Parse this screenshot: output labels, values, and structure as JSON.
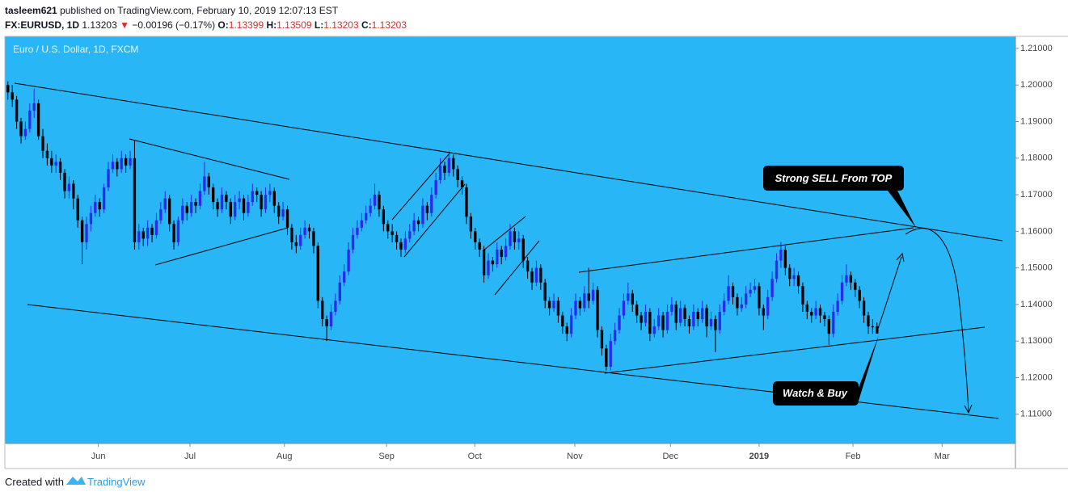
{
  "header": {
    "author": "tasleem621",
    "published": "published on TradingView.com, February 10, 2019 12:07:13 EST",
    "symbol": "FX:EURUSD, 1D",
    "last": "1.13203",
    "change_arrow": "▼",
    "change": "−0.00196 (−0.17%)",
    "ohlc": [
      {
        "label": "O:",
        "value": "1.13399"
      },
      {
        "label": "H:",
        "value": "1.13509"
      },
      {
        "label": "L:",
        "value": "1.13203"
      },
      {
        "label": "C:",
        "value": "1.13203"
      }
    ]
  },
  "footer": {
    "text": "Created with",
    "brand": "TradingView"
  },
  "chart_data": {
    "type": "candlestick",
    "title": "Euro / U.S. Dollar, 1D, FXCM",
    "annotations": [
      "Strong SELL From TOP",
      "Watch & Buy"
    ],
    "background": "#29b6f6",
    "up_color": "#2b2bf0",
    "down_color": "#000000",
    "ylim": [
      1.102,
      1.2133
    ],
    "yticks": [
      {
        "value": 1.11,
        "label": "1.11000"
      },
      {
        "value": 1.12,
        "label": "1.12000"
      },
      {
        "value": 1.13,
        "label": "1.13000"
      },
      {
        "value": 1.14,
        "label": "1.14000"
      },
      {
        "value": 1.15,
        "label": "1.15000"
      },
      {
        "value": 1.16,
        "label": "1.16000"
      },
      {
        "value": 1.17,
        "label": "1.17000"
      },
      {
        "value": 1.18,
        "label": "1.18000"
      },
      {
        "value": 1.19,
        "label": "1.19000"
      },
      {
        "value": 1.2,
        "label": "1.20000"
      },
      {
        "value": 1.21,
        "label": "1.21000"
      }
    ],
    "xlim": [
      -0.7,
      230.7
    ],
    "xticks": [
      {
        "value": 20.7,
        "label": "Jun"
      },
      {
        "value": 41.7,
        "label": "Jul"
      },
      {
        "value": 63.3,
        "label": "Aug"
      },
      {
        "value": 86.7,
        "label": "Sep"
      },
      {
        "value": 106.9,
        "label": "Oct"
      },
      {
        "value": 129.8,
        "label": "Nov"
      },
      {
        "value": 151.7,
        "label": "Dec"
      },
      {
        "value": 172,
        "label": "2019"
      },
      {
        "value": 193.5,
        "label": "Feb"
      },
      {
        "value": 213.9,
        "label": "Mar"
      }
    ],
    "values": [
      [
        1.2,
        1.201,
        1.196,
        1.198
      ],
      [
        1.198,
        1.2,
        1.194,
        1.196
      ],
      [
        1.196,
        1.197,
        1.188,
        1.19
      ],
      [
        1.19,
        1.191,
        1.184,
        1.186
      ],
      [
        1.186,
        1.19,
        1.185,
        1.188
      ],
      [
        1.188,
        1.195,
        1.187,
        1.193
      ],
      [
        1.193,
        1.199,
        1.191,
        1.195
      ],
      [
        1.195,
        1.196,
        1.185,
        1.186
      ],
      [
        1.186,
        1.188,
        1.18,
        1.182
      ],
      [
        1.182,
        1.184,
        1.178,
        1.18
      ],
      [
        1.18,
        1.182,
        1.176,
        1.178
      ],
      [
        1.178,
        1.181,
        1.176,
        1.179
      ],
      [
        1.179,
        1.18,
        1.174,
        1.176
      ],
      [
        1.176,
        1.177,
        1.169,
        1.171
      ],
      [
        1.171,
        1.175,
        1.169,
        1.173
      ],
      [
        1.173,
        1.174,
        1.166,
        1.169
      ],
      [
        1.169,
        1.17,
        1.161,
        1.163
      ],
      [
        1.163,
        1.164,
        1.151,
        1.157
      ],
      [
        1.157,
        1.164,
        1.155,
        1.162
      ],
      [
        1.162,
        1.167,
        1.16,
        1.165
      ],
      [
        1.165,
        1.17,
        1.164,
        1.168
      ],
      [
        1.168,
        1.169,
        1.164,
        1.166
      ],
      [
        1.166,
        1.173,
        1.165,
        1.172
      ],
      [
        1.172,
        1.179,
        1.171,
        1.177
      ],
      [
        1.177,
        1.181,
        1.176,
        1.179
      ],
      [
        1.179,
        1.18,
        1.175,
        1.177
      ],
      [
        1.177,
        1.182,
        1.176,
        1.18
      ],
      [
        1.18,
        1.181,
        1.176,
        1.178
      ],
      [
        1.178,
        1.182,
        1.177,
        1.18
      ],
      [
        1.18,
        1.185,
        1.155,
        1.157
      ],
      [
        1.157,
        1.162,
        1.155,
        1.16
      ],
      [
        1.16,
        1.161,
        1.156,
        1.158
      ],
      [
        1.158,
        1.163,
        1.156,
        1.161
      ],
      [
        1.161,
        1.162,
        1.157,
        1.159
      ],
      [
        1.159,
        1.165,
        1.158,
        1.163
      ],
      [
        1.163,
        1.168,
        1.162,
        1.166
      ],
      [
        1.166,
        1.171,
        1.165,
        1.169
      ],
      [
        1.169,
        1.17,
        1.16,
        1.162
      ],
      [
        1.162,
        1.163,
        1.155,
        1.157
      ],
      [
        1.157,
        1.164,
        1.156,
        1.163
      ],
      [
        1.163,
        1.169,
        1.162,
        1.167
      ],
      [
        1.167,
        1.168,
        1.163,
        1.165
      ],
      [
        1.165,
        1.17,
        1.164,
        1.168
      ],
      [
        1.168,
        1.169,
        1.165,
        1.167
      ],
      [
        1.167,
        1.173,
        1.166,
        1.171
      ],
      [
        1.171,
        1.179,
        1.17,
        1.175
      ],
      [
        1.175,
        1.176,
        1.17,
        1.172
      ],
      [
        1.172,
        1.173,
        1.166,
        1.168
      ],
      [
        1.168,
        1.169,
        1.164,
        1.166
      ],
      [
        1.166,
        1.172,
        1.165,
        1.17
      ],
      [
        1.17,
        1.171,
        1.166,
        1.168
      ],
      [
        1.168,
        1.169,
        1.162,
        1.164
      ],
      [
        1.164,
        1.17,
        1.163,
        1.168
      ],
      [
        1.168,
        1.171,
        1.166,
        1.169
      ],
      [
        1.169,
        1.17,
        1.163,
        1.165
      ],
      [
        1.165,
        1.17,
        1.164,
        1.168
      ],
      [
        1.168,
        1.173,
        1.167,
        1.171
      ],
      [
        1.171,
        1.172,
        1.168,
        1.17
      ],
      [
        1.17,
        1.171,
        1.164,
        1.166
      ],
      [
        1.166,
        1.172,
        1.165,
        1.17
      ],
      [
        1.17,
        1.173,
        1.168,
        1.171
      ],
      [
        1.171,
        1.172,
        1.165,
        1.167
      ],
      [
        1.167,
        1.168,
        1.162,
        1.164
      ],
      [
        1.164,
        1.168,
        1.163,
        1.166
      ],
      [
        1.166,
        1.167,
        1.159,
        1.161
      ],
      [
        1.161,
        1.162,
        1.155,
        1.157
      ],
      [
        1.157,
        1.159,
        1.154,
        1.156
      ],
      [
        1.156,
        1.161,
        1.155,
        1.159
      ],
      [
        1.159,
        1.163,
        1.158,
        1.161
      ],
      [
        1.161,
        1.162,
        1.158,
        1.16
      ],
      [
        1.16,
        1.161,
        1.154,
        1.156
      ],
      [
        1.156,
        1.157,
        1.139,
        1.141
      ],
      [
        1.141,
        1.142,
        1.134,
        1.136
      ],
      [
        1.136,
        1.137,
        1.13,
        1.134
      ],
      [
        1.134,
        1.14,
        1.133,
        1.138
      ],
      [
        1.138,
        1.143,
        1.137,
        1.141
      ],
      [
        1.141,
        1.148,
        1.14,
        1.146
      ],
      [
        1.146,
        1.151,
        1.145,
        1.149
      ],
      [
        1.149,
        1.157,
        1.148,
        1.155
      ],
      [
        1.155,
        1.161,
        1.154,
        1.159
      ],
      [
        1.159,
        1.163,
        1.158,
        1.161
      ],
      [
        1.161,
        1.165,
        1.16,
        1.163
      ],
      [
        1.163,
        1.167,
        1.162,
        1.165
      ],
      [
        1.165,
        1.169,
        1.164,
        1.167
      ],
      [
        1.167,
        1.173,
        1.166,
        1.17
      ],
      [
        1.17,
        1.171,
        1.164,
        1.166
      ],
      [
        1.166,
        1.167,
        1.16,
        1.162
      ],
      [
        1.162,
        1.163,
        1.158,
        1.16
      ],
      [
        1.16,
        1.162,
        1.157,
        1.159
      ],
      [
        1.159,
        1.16,
        1.155,
        1.157
      ],
      [
        1.157,
        1.158,
        1.153,
        1.155
      ],
      [
        1.155,
        1.16,
        1.154,
        1.158
      ],
      [
        1.158,
        1.162,
        1.157,
        1.16
      ],
      [
        1.16,
        1.165,
        1.159,
        1.163
      ],
      [
        1.163,
        1.164,
        1.16,
        1.162
      ],
      [
        1.162,
        1.169,
        1.161,
        1.167
      ],
      [
        1.167,
        1.168,
        1.163,
        1.165
      ],
      [
        1.165,
        1.172,
        1.164,
        1.17
      ],
      [
        1.17,
        1.176,
        1.169,
        1.174
      ],
      [
        1.174,
        1.18,
        1.173,
        1.178
      ],
      [
        1.178,
        1.179,
        1.174,
        1.176
      ],
      [
        1.176,
        1.182,
        1.175,
        1.18
      ],
      [
        1.18,
        1.181,
        1.175,
        1.177
      ],
      [
        1.177,
        1.178,
        1.172,
        1.174
      ],
      [
        1.174,
        1.175,
        1.17,
        1.172
      ],
      [
        1.172,
        1.173,
        1.162,
        1.164
      ],
      [
        1.164,
        1.165,
        1.158,
        1.16
      ],
      [
        1.16,
        1.161,
        1.155,
        1.157
      ],
      [
        1.157,
        1.158,
        1.153,
        1.155
      ],
      [
        1.155,
        1.156,
        1.146,
        1.148
      ],
      [
        1.148,
        1.154,
        1.147,
        1.152
      ],
      [
        1.152,
        1.153,
        1.149,
        1.151
      ],
      [
        1.151,
        1.157,
        1.15,
        1.155
      ],
      [
        1.155,
        1.156,
        1.151,
        1.153
      ],
      [
        1.153,
        1.158,
        1.152,
        1.156
      ],
      [
        1.156,
        1.162,
        1.155,
        1.16
      ],
      [
        1.16,
        1.161,
        1.155,
        1.157
      ],
      [
        1.157,
        1.16,
        1.155,
        1.158
      ],
      [
        1.158,
        1.159,
        1.15,
        1.152
      ],
      [
        1.152,
        1.153,
        1.147,
        1.149
      ],
      [
        1.149,
        1.15,
        1.144,
        1.146
      ],
      [
        1.146,
        1.152,
        1.145,
        1.15
      ],
      [
        1.15,
        1.151,
        1.144,
        1.146
      ],
      [
        1.146,
        1.147,
        1.139,
        1.141
      ],
      [
        1.141,
        1.142,
        1.137,
        1.139
      ],
      [
        1.139,
        1.143,
        1.138,
        1.141
      ],
      [
        1.141,
        1.142,
        1.135,
        1.137
      ],
      [
        1.137,
        1.138,
        1.132,
        1.134
      ],
      [
        1.134,
        1.135,
        1.13,
        1.132
      ],
      [
        1.132,
        1.139,
        1.131,
        1.137
      ],
      [
        1.137,
        1.143,
        1.136,
        1.141
      ],
      [
        1.141,
        1.142,
        1.137,
        1.139
      ],
      [
        1.139,
        1.145,
        1.138,
        1.143
      ],
      [
        1.143,
        1.15,
        1.139,
        1.141
      ],
      [
        1.141,
        1.146,
        1.14,
        1.144
      ],
      [
        1.144,
        1.145,
        1.131,
        1.133
      ],
      [
        1.133,
        1.134,
        1.126,
        1.128
      ],
      [
        1.128,
        1.129,
        1.122,
        1.123
      ],
      [
        1.123,
        1.132,
        1.122,
        1.13
      ],
      [
        1.13,
        1.135,
        1.129,
        1.133
      ],
      [
        1.133,
        1.139,
        1.132,
        1.137
      ],
      [
        1.137,
        1.143,
        1.136,
        1.141
      ],
      [
        1.141,
        1.146,
        1.14,
        1.143
      ],
      [
        1.143,
        1.144,
        1.138,
        1.14
      ],
      [
        1.14,
        1.141,
        1.135,
        1.137
      ],
      [
        1.137,
        1.138,
        1.133,
        1.135
      ],
      [
        1.135,
        1.14,
        1.134,
        1.138
      ],
      [
        1.138,
        1.139,
        1.13,
        1.132
      ],
      [
        1.132,
        1.136,
        1.131,
        1.134
      ],
      [
        1.134,
        1.139,
        1.133,
        1.137
      ],
      [
        1.137,
        1.138,
        1.131,
        1.133
      ],
      [
        1.133,
        1.14,
        1.132,
        1.138
      ],
      [
        1.138,
        1.142,
        1.137,
        1.14
      ],
      [
        1.14,
        1.141,
        1.133,
        1.135
      ],
      [
        1.135,
        1.141,
        1.134,
        1.139
      ],
      [
        1.139,
        1.14,
        1.134,
        1.136
      ],
      [
        1.136,
        1.137,
        1.132,
        1.134
      ],
      [
        1.134,
        1.14,
        1.133,
        1.138
      ],
      [
        1.138,
        1.139,
        1.134,
        1.136
      ],
      [
        1.136,
        1.141,
        1.135,
        1.139
      ],
      [
        1.139,
        1.14,
        1.131,
        1.134
      ],
      [
        1.134,
        1.138,
        1.133,
        1.136
      ],
      [
        1.136,
        1.137,
        1.127,
        1.133
      ],
      [
        1.133,
        1.14,
        1.132,
        1.138
      ],
      [
        1.138,
        1.143,
        1.137,
        1.141
      ],
      [
        1.141,
        1.148,
        1.14,
        1.145
      ],
      [
        1.145,
        1.146,
        1.14,
        1.142
      ],
      [
        1.142,
        1.143,
        1.137,
        1.139
      ],
      [
        1.139,
        1.142,
        1.138,
        1.14
      ],
      [
        1.14,
        1.145,
        1.139,
        1.143
      ],
      [
        1.143,
        1.146,
        1.142,
        1.144
      ],
      [
        1.144,
        1.147,
        1.143,
        1.145
      ],
      [
        1.145,
        1.146,
        1.137,
        1.139
      ],
      [
        1.139,
        1.14,
        1.133,
        1.137
      ],
      [
        1.137,
        1.144,
        1.136,
        1.142
      ],
      [
        1.142,
        1.149,
        1.141,
        1.147
      ],
      [
        1.147,
        1.154,
        1.146,
        1.152
      ],
      [
        1.152,
        1.157,
        1.15,
        1.155
      ],
      [
        1.155,
        1.156,
        1.148,
        1.15
      ],
      [
        1.15,
        1.151,
        1.145,
        1.147
      ],
      [
        1.147,
        1.15,
        1.145,
        1.148
      ],
      [
        1.148,
        1.149,
        1.143,
        1.145
      ],
      [
        1.145,
        1.146,
        1.138,
        1.14
      ],
      [
        1.14,
        1.141,
        1.136,
        1.138
      ],
      [
        1.138,
        1.139,
        1.135,
        1.137
      ],
      [
        1.137,
        1.141,
        1.136,
        1.139
      ],
      [
        1.139,
        1.14,
        1.135,
        1.137
      ],
      [
        1.137,
        1.138,
        1.134,
        1.136
      ],
      [
        1.136,
        1.137,
        1.129,
        1.132
      ],
      [
        1.132,
        1.14,
        1.131,
        1.138
      ],
      [
        1.138,
        1.143,
        1.137,
        1.141
      ],
      [
        1.141,
        1.148,
        1.14,
        1.146
      ],
      [
        1.146,
        1.151,
        1.145,
        1.148
      ],
      [
        1.148,
        1.149,
        1.144,
        1.146
      ],
      [
        1.146,
        1.147,
        1.142,
        1.144
      ],
      [
        1.144,
        1.145,
        1.139,
        1.141
      ],
      [
        1.141,
        1.142,
        1.135,
        1.137
      ],
      [
        1.137,
        1.138,
        1.132,
        1.134
      ],
      [
        1.134,
        1.136,
        1.132,
        1.13399
      ],
      [
        1.13399,
        1.13509,
        1.13203,
        1.13203
      ]
    ]
  }
}
